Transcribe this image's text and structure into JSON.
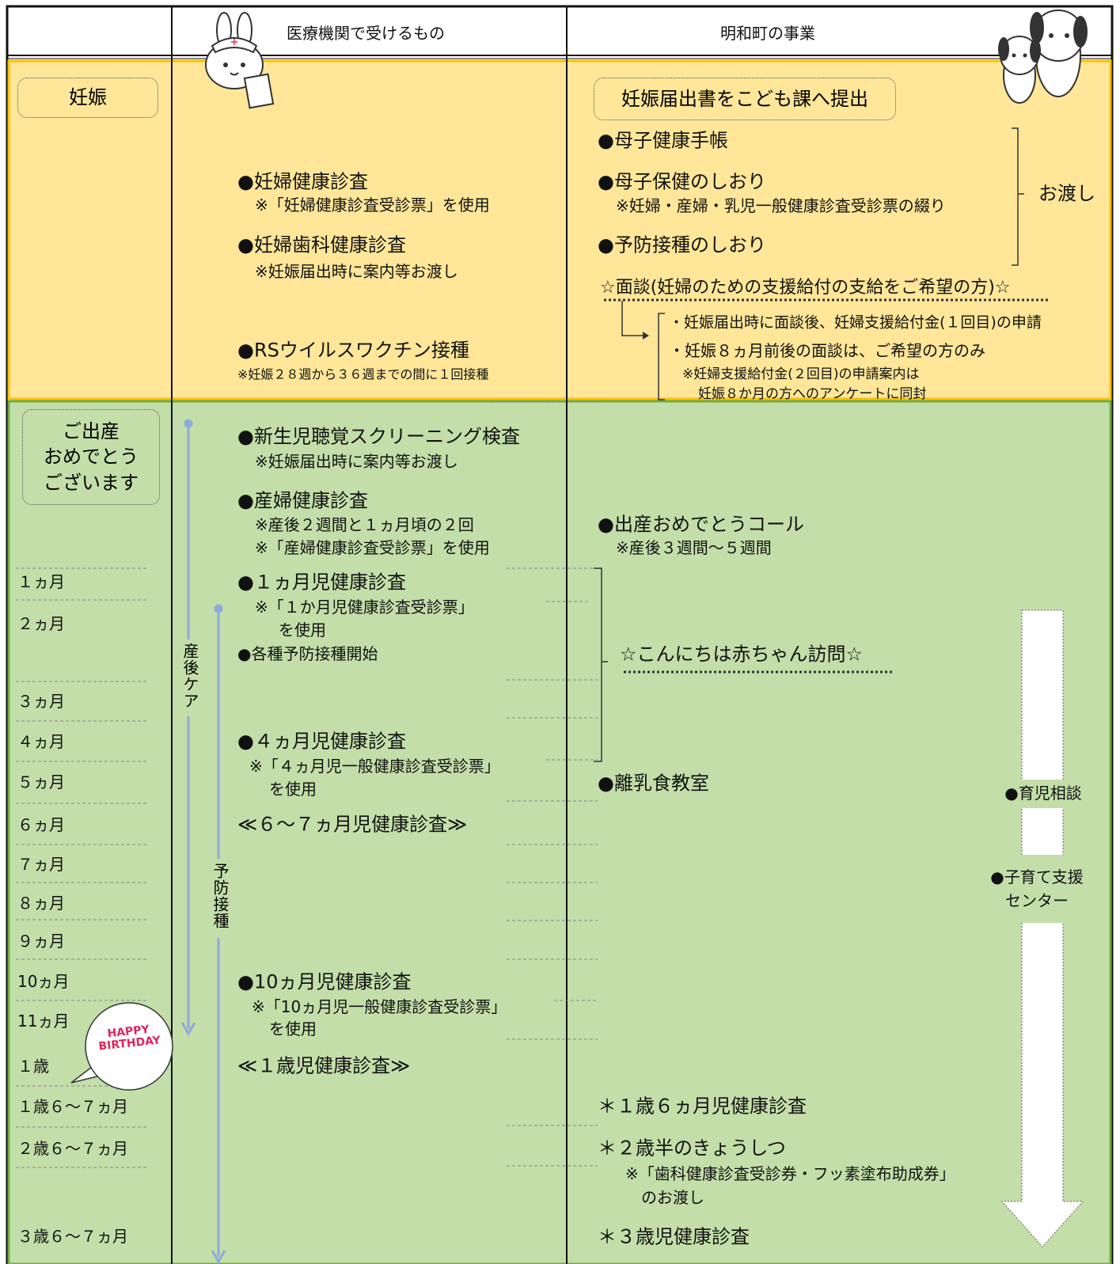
{
  "header": {
    "medical": "医療機関で受けるもの",
    "town": "明和町の事業"
  },
  "pregnancy": {
    "label": "妊娠",
    "medical": [
      "●妊婦健康診査",
      "※「妊婦健康診査受診票」を使用",
      "●妊婦歯科健康診査",
      "※妊娠届出時に案内等お渡し",
      "●RSウイルスワクチン接種",
      "※妊娠２８週から３６週までの間に１回接種"
    ],
    "town_box": "妊娠届出書をこども課へ提出",
    "town": [
      "●母子健康手帳",
      "●母子保健のしおり",
      "※妊婦・産婦・乳児一般健康診査受診票の綴り",
      "●予防接種のしおり"
    ],
    "handover": "お渡し",
    "interview": "☆面談(妊婦のための支援給付の支給をご希望の方)☆",
    "interview_notes": [
      "・妊娠届出時に面談後、妊婦支援給付金(１回目)の申請",
      "・妊娠８ヵ月前後の面談は、ご希望の方のみ",
      "※妊婦支援給付金(２回目)の申請案内は",
      "妊娠８か月の方へのアンケートに同封"
    ]
  },
  "birth": {
    "label": [
      "ご出産",
      "おめでとう",
      "ございます"
    ],
    "ages": [
      "１ヵ月",
      "２ヵ月",
      "３ヵ月",
      "４ヵ月",
      "５ヵ月",
      "６ヵ月",
      "７ヵ月",
      "８ヵ月",
      "９ヵ月",
      "10ヵ月",
      "11ヵ月",
      "１歳",
      "１歳６～７ヵ月",
      "２歳６～７ヵ月",
      "３歳６～７ヵ月"
    ],
    "postnatal_care": "産後ケア",
    "vaccination": "予防接種",
    "birthday": [
      "HAPPY",
      "BIRTHDAY"
    ],
    "medical": [
      "●新生児聴覚スクリーニング検査",
      "※妊娠届出時に案内等お渡し",
      "●産婦健康診査",
      "※産後２週間と１ヵ月頃の２回",
      "※「産婦健康診査受診票」を使用",
      "●１ヵ月児健康診査",
      "※「１か月児健康診査受診票」",
      "を使用",
      "●各種予防接種開始",
      "●４ヵ月児健康診査",
      "※「４ヵ月児一般健康診査受診票」",
      "を使用",
      "≪６～７ヵ月児健康診査≫",
      "●10ヵ月児健康診査",
      "※「10ヵ月児一般健康診査受診票」",
      "を使用",
      "≪１歳児健康診査≫"
    ],
    "town": [
      "●出産おめでとうコール",
      "※産後３週間～５週間",
      "☆こんにちは赤ちゃん訪問☆",
      "●離乳食教室",
      "＊１歳６ヵ月児健康診査",
      "＊２歳半のきょうしつ",
      "※「歯科健康診査受診券・フッ素塗布助成券」",
      "のお渡し",
      "＊３歳児健康診査"
    ],
    "support": [
      "●育児相談",
      "●子育て支援",
      "センター"
    ]
  }
}
